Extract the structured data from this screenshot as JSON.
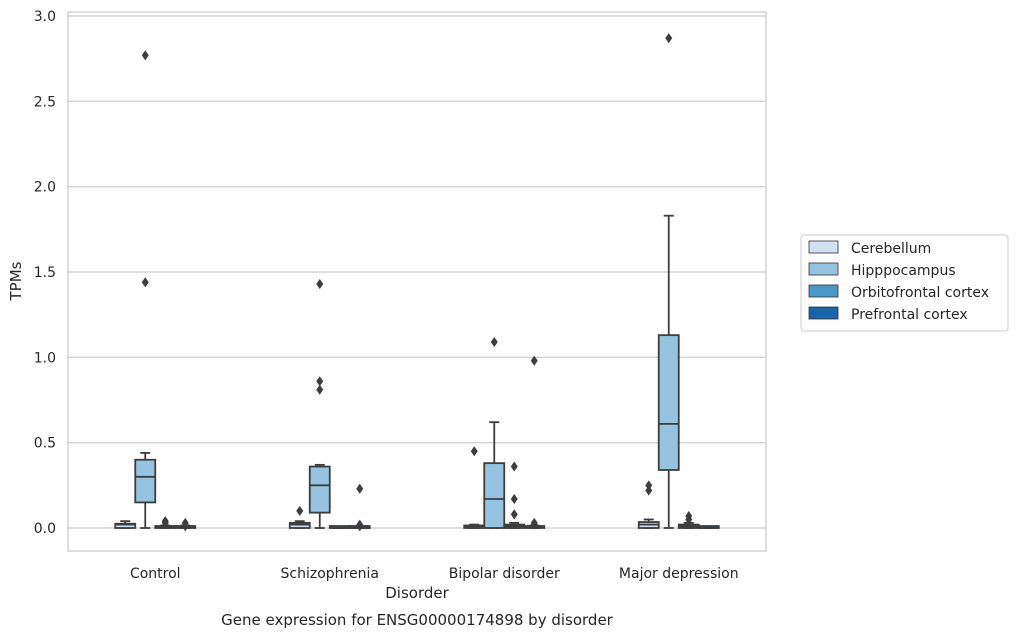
{
  "chart_data": {
    "type": "box",
    "title": "",
    "caption": "Gene expression for ENSG00000174898 by disorder",
    "xlabel": "Disorder",
    "ylabel": "TPMs",
    "ylim": [
      -0.14,
      3.02
    ],
    "yticks": [
      "0.0",
      "0.5",
      "1.0",
      "1.5",
      "2.0",
      "2.5",
      "3.0"
    ],
    "ytick_values": [
      0,
      0.5,
      1.0,
      1.5,
      2.0,
      2.5,
      3.0
    ],
    "grid": true,
    "legend_position": "right",
    "categories": [
      "Control",
      "Schizophrenia",
      "Bipolar disorder",
      "Major depression"
    ],
    "series": [
      {
        "name": "Cerebellum",
        "color": "#d0e1f2",
        "boxes": [
          {
            "whislo": 0.0,
            "q1": 0.0,
            "med": 0.02,
            "q3": 0.025,
            "whishi": 0.04,
            "fliers": []
          },
          {
            "whislo": 0.0,
            "q1": 0.0,
            "med": 0.02,
            "q3": 0.03,
            "whishi": 0.04,
            "fliers": [
              0.1
            ]
          },
          {
            "whislo": 0.0,
            "q1": 0.0,
            "med": 0.01,
            "q3": 0.015,
            "whishi": 0.02,
            "fliers": [
              0.45
            ]
          },
          {
            "whislo": 0.0,
            "q1": 0.0,
            "med": 0.02,
            "q3": 0.035,
            "whishi": 0.05,
            "fliers": [
              0.22,
              0.25
            ]
          }
        ]
      },
      {
        "name": "Hipppocampus",
        "color": "#94c4df",
        "boxes": [
          {
            "whislo": 0.0,
            "q1": 0.15,
            "med": 0.3,
            "q3": 0.4,
            "whishi": 0.44,
            "fliers": [
              1.44,
              2.77
            ]
          },
          {
            "whislo": 0.0,
            "q1": 0.09,
            "med": 0.25,
            "q3": 0.36,
            "whishi": 0.37,
            "fliers": [
              0.81,
              0.86,
              1.43
            ]
          },
          {
            "whislo": 0.0,
            "q1": 0.0,
            "med": 0.17,
            "q3": 0.38,
            "whishi": 0.62,
            "fliers": [
              1.09
            ]
          },
          {
            "whislo": 0.0,
            "q1": 0.34,
            "med": 0.61,
            "q3": 1.13,
            "whishi": 1.83,
            "fliers": [
              2.87
            ]
          }
        ]
      },
      {
        "name": "Orbitofrontal cortex",
        "color": "#4a98c9",
        "boxes": [
          {
            "whislo": 0.0,
            "q1": 0.0,
            "med": 0.005,
            "q3": 0.01,
            "whishi": 0.015,
            "fliers": [
              0.03,
              0.04
            ]
          },
          {
            "whislo": 0.0,
            "q1": 0.0,
            "med": 0.0,
            "q3": 0.002,
            "whishi": 0.004,
            "fliers": []
          },
          {
            "whislo": 0.0,
            "q1": 0.0,
            "med": 0.01,
            "q3": 0.02,
            "whishi": 0.03,
            "fliers": [
              0.08,
              0.17,
              0.36
            ]
          },
          {
            "whislo": 0.0,
            "q1": 0.0,
            "med": 0.01,
            "q3": 0.02,
            "whishi": 0.03,
            "fliers": [
              0.05,
              0.07
            ]
          }
        ]
      },
      {
        "name": "Prefrontal cortex",
        "color": "#1764ab",
        "boxes": [
          {
            "whislo": 0.0,
            "q1": 0.0,
            "med": 0.005,
            "q3": 0.01,
            "whishi": 0.015,
            "fliers": [
              0.01,
              0.03
            ]
          },
          {
            "whislo": 0.0,
            "q1": 0.0,
            "med": 0.0,
            "q3": 0.002,
            "whishi": 0.004,
            "fliers": [
              0.01,
              0.02,
              0.23
            ]
          },
          {
            "whislo": 0.0,
            "q1": 0.0,
            "med": 0.005,
            "q3": 0.01,
            "whishi": 0.015,
            "fliers": [
              0.02,
              0.03,
              0.98
            ]
          },
          {
            "whislo": 0.0,
            "q1": 0.0,
            "med": 0.0,
            "q3": 0.002,
            "whishi": 0.004,
            "fliers": []
          }
        ]
      }
    ]
  }
}
